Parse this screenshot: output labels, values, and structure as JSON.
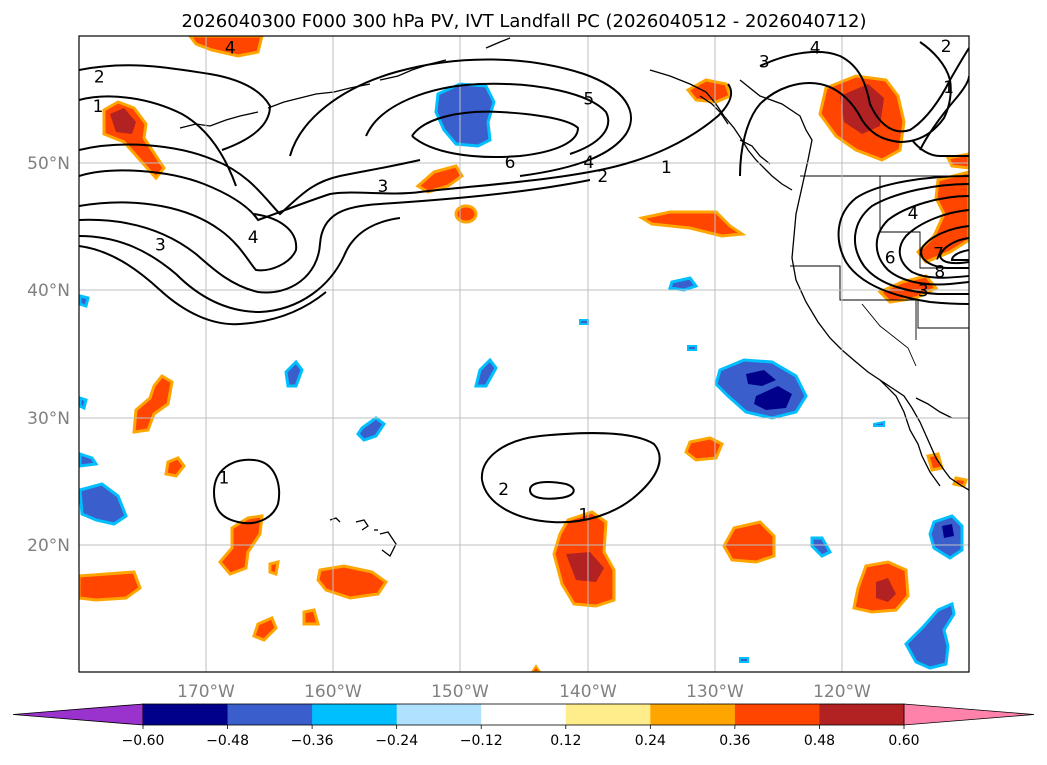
{
  "chart_data": {
    "type": "map-contour",
    "title": "2026040300 F000 300 hPa PV, IVT Landfall PC (2026040512 - 2026040712)",
    "lon_range": [
      -180,
      -110
    ],
    "lat_range": [
      10,
      60
    ],
    "x_ticks": [
      {
        "lon": -170,
        "label": "170°W"
      },
      {
        "lon": -160,
        "label": "160°W"
      },
      {
        "lon": -150,
        "label": "150°W"
      },
      {
        "lon": -140,
        "label": "140°W"
      },
      {
        "lon": -130,
        "label": "130°W"
      },
      {
        "lon": -120,
        "label": "120°W"
      }
    ],
    "y_ticks": [
      {
        "lat": 20,
        "label": "20°N"
      },
      {
        "lat": 30,
        "label": "30°N"
      },
      {
        "lat": 40,
        "label": "40°N"
      },
      {
        "lat": 50,
        "label": "50°N"
      }
    ],
    "grid": true,
    "colorbar": {
      "orientation": "horizontal",
      "extend": "both",
      "levels": [
        -0.6,
        -0.48,
        -0.36,
        -0.24,
        -0.12,
        0.12,
        0.24,
        0.36,
        0.48,
        0.6
      ],
      "tick_labels": [
        "−0.60",
        "−0.48",
        "−0.36",
        "−0.24",
        "−0.12",
        "0.12",
        "0.24",
        "0.36",
        "0.48",
        "0.60"
      ],
      "colors": [
        "#9a32cd",
        "#00008b",
        "#3a5fcd",
        "#00bfff",
        "#b0e2ff",
        "#ffffff",
        "#ffec8b",
        "#ffa500",
        "#ff4500",
        "#b22222",
        "#ff82ab"
      ]
    },
    "contour_labels": [
      {
        "text": "2",
        "lon": -178.4,
        "lat": 56.8
      },
      {
        "text": "1",
        "lon": -178.5,
        "lat": 54.5
      },
      {
        "text": "4",
        "lon": -168.1,
        "lat": 59.1
      },
      {
        "text": "3",
        "lon": -173.6,
        "lat": 43.6
      },
      {
        "text": "4",
        "lon": -166.3,
        "lat": 44.2
      },
      {
        "text": "3",
        "lon": -156.1,
        "lat": 48.2
      },
      {
        "text": "6",
        "lon": -146.1,
        "lat": 50.1
      },
      {
        "text": "5",
        "lon": -139.9,
        "lat": 55.1
      },
      {
        "text": "4",
        "lon": -139.9,
        "lat": 50.1
      },
      {
        "text": "2",
        "lon": -138.8,
        "lat": 49.0
      },
      {
        "text": "1",
        "lon": -133.8,
        "lat": 49.7
      },
      {
        "text": "3",
        "lon": -126.1,
        "lat": 58.0
      },
      {
        "text": "4",
        "lon": -122.1,
        "lat": 59.1
      },
      {
        "text": "2",
        "lon": -111.8,
        "lat": 59.2
      },
      {
        "text": "1",
        "lon": -111.6,
        "lat": 56.0
      },
      {
        "text": "4",
        "lon": -114.4,
        "lat": 46.1
      },
      {
        "text": "7",
        "lon": -112.4,
        "lat": 42.9
      },
      {
        "text": "6",
        "lon": -116.2,
        "lat": 42.6
      },
      {
        "text": "8",
        "lon": -112.3,
        "lat": 41.5
      },
      {
        "text": "3",
        "lon": -113.6,
        "lat": 40.0
      },
      {
        "text": "1",
        "lon": -168.6,
        "lat": 25.3
      },
      {
        "text": "2",
        "lon": -146.6,
        "lat": 24.4
      },
      {
        "text": "1",
        "lon": -140.3,
        "lat": 22.4
      }
    ],
    "shaded_regions": [
      {
        "level": 0.36,
        "lat": 59.5,
        "lon": -168
      },
      {
        "level": 0.48,
        "lat": 54,
        "lon": -176
      },
      {
        "level": 0.36,
        "lat": 49,
        "lon": -154
      },
      {
        "level": 0.36,
        "lat": 46,
        "lon": -149
      },
      {
        "level": 0.36,
        "lat": 45.5,
        "lon": -136
      },
      {
        "level": -0.36,
        "lat": 54.5,
        "lon": -148
      },
      {
        "level": 0.36,
        "lat": 56,
        "lon": -130
      },
      {
        "level": 0.48,
        "lat": 54,
        "lon": -119
      },
      {
        "level": 0.36,
        "lat": 45,
        "lon": -111
      },
      {
        "level": 0.36,
        "lat": 41,
        "lon": -115
      },
      {
        "level": -0.48,
        "lat": 32.5,
        "lon": -125
      },
      {
        "level": 0.36,
        "lat": 33,
        "lon": -174
      },
      {
        "level": 0.36,
        "lat": 19.5,
        "lon": -167
      },
      {
        "level": 0.36,
        "lat": 16.5,
        "lon": -177
      },
      {
        "level": 0.36,
        "lat": 17,
        "lon": -158
      },
      {
        "level": 0.48,
        "lat": 17.5,
        "lon": -140
      },
      {
        "level": 0.36,
        "lat": 20,
        "lon": -125
      },
      {
        "level": 0.48,
        "lat": 16,
        "lon": -116
      },
      {
        "level": -0.36,
        "lat": 23,
        "lon": -178
      },
      {
        "level": -0.48,
        "lat": 20.5,
        "lon": -111
      },
      {
        "level": -0.36,
        "lat": 12.5,
        "lon": -112
      }
    ]
  }
}
